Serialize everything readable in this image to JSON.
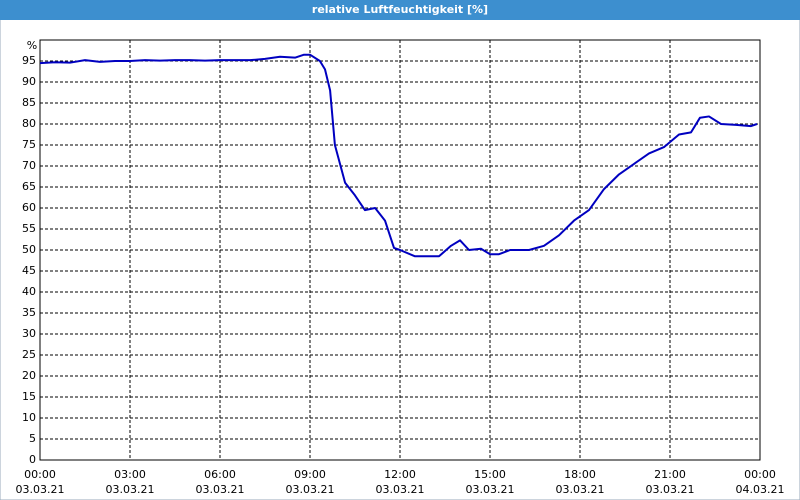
{
  "chart_data": {
    "type": "line",
    "title": "relative Luftfeuchtigkeit [%]",
    "y_unit": "%",
    "x": [
      0,
      0.5,
      1,
      1.5,
      2,
      2.5,
      3,
      3.5,
      4,
      4.5,
      5,
      5.5,
      6,
      6.5,
      7,
      7.5,
      8,
      8.5,
      8.8,
      9,
      9.33,
      9.5,
      9.67,
      9.83,
      10.17,
      10.5,
      10.83,
      11.17,
      11.5,
      11.8,
      12,
      12.5,
      13,
      13.3,
      13.7,
      14,
      14.3,
      14.7,
      15,
      15.3,
      15.67,
      16.3,
      16.8,
      17.3,
      17.8,
      18.3,
      18.8,
      19.3,
      19.8,
      20.3,
      20.8,
      21.3,
      21.7,
      22,
      22.3,
      22.7,
      23.2,
      23.7,
      23.9
    ],
    "series": [
      {
        "name": "relative Luftfeuchtigkeit",
        "color": "#0000c0",
        "values": [
          94.5,
          94.7,
          94.6,
          95.2,
          94.8,
          95,
          95,
          95.2,
          95.1,
          95.2,
          95.2,
          95.1,
          95.2,
          95.2,
          95.2,
          95.5,
          96,
          95.8,
          96.5,
          96.5,
          95,
          93,
          88,
          75,
          66,
          63,
          59.5,
          60,
          57,
          50.5,
          50,
          48.5,
          48.5,
          48.5,
          51,
          52.3,
          50,
          50.3,
          49,
          49,
          50,
          50,
          51,
          53.5,
          57,
          59.5,
          64.5,
          68,
          70.5,
          73,
          74.5,
          77.5,
          78,
          81.5,
          81.8,
          80,
          79.8,
          79.5,
          80
        ]
      }
    ],
    "xlim": [
      0,
      24
    ],
    "xticks": [
      {
        "value": 0,
        "label": "00:00",
        "date": "03.03.21"
      },
      {
        "value": 3,
        "label": "03:00",
        "date": "03.03.21"
      },
      {
        "value": 6,
        "label": "06:00",
        "date": "03.03.21"
      },
      {
        "value": 9,
        "label": "09:00",
        "date": "03.03.21"
      },
      {
        "value": 12,
        "label": "12:00",
        "date": "03.03.21"
      },
      {
        "value": 15,
        "label": "15:00",
        "date": "03.03.21"
      },
      {
        "value": 18,
        "label": "18:00",
        "date": "03.03.21"
      },
      {
        "value": 21,
        "label": "21:00",
        "date": "03.03.21"
      },
      {
        "value": 24,
        "label": "00:00",
        "date": "04.03.21"
      }
    ],
    "ylim": [
      0,
      100
    ],
    "yticks": [
      0,
      5,
      10,
      15,
      20,
      25,
      30,
      35,
      40,
      45,
      50,
      55,
      60,
      65,
      70,
      75,
      80,
      85,
      90,
      95
    ],
    "grid": true
  }
}
